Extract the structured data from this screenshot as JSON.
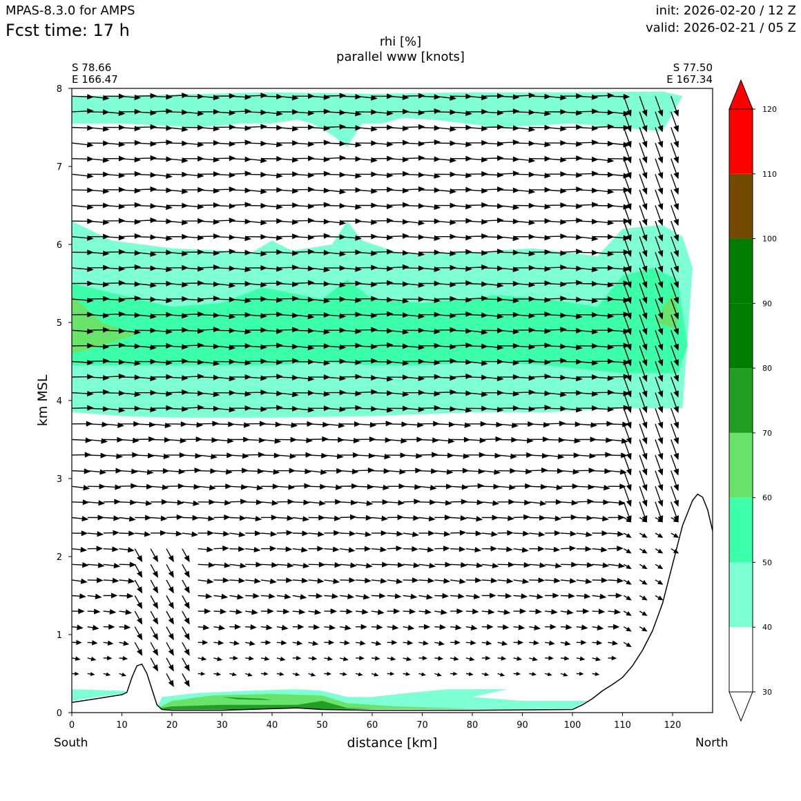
{
  "header": {
    "model": "MPAS-8.3.0 for AMPS",
    "fcst": "Fcst time:   17 h",
    "init": "init: 2026-02-20 / 12 Z",
    "valid": "valid: 2026-02-21 / 05 Z"
  },
  "chart_data": {
    "type": "heatmap",
    "title": "rhi [%]",
    "subtitle": "parallel www [knots]",
    "xlabel": "distance [km]",
    "ylabel": "km MSL",
    "xlim": [
      0,
      128
    ],
    "ylim": [
      0,
      8
    ],
    "xticks": [
      0,
      10,
      20,
      30,
      40,
      50,
      60,
      70,
      80,
      90,
      100,
      110,
      120
    ],
    "yticks": [
      0,
      1,
      2,
      3,
      4,
      5,
      6,
      7,
      8
    ],
    "start_point": {
      "lat": "S 78.66",
      "lon": "E 166.47"
    },
    "end_point": {
      "lat": "S 77.50",
      "lon": "E 167.34"
    },
    "direction_left": "South",
    "direction_right": "North",
    "colorbar": {
      "levels": [
        30,
        40,
        50,
        60,
        70,
        80,
        90,
        100,
        110,
        120
      ],
      "colors": [
        "#ffffff",
        "#7fffd4",
        "#3cffaa",
        "#6ae36a",
        "#229e22",
        "#007d00",
        "#007d00",
        "#744900",
        "#ff0000"
      ]
    },
    "terrain": [
      [
        0,
        0.13
      ],
      [
        5,
        0.18
      ],
      [
        10,
        0.23
      ],
      [
        11,
        0.26
      ],
      [
        12,
        0.45
      ],
      [
        13,
        0.6
      ],
      [
        14,
        0.62
      ],
      [
        15,
        0.5
      ],
      [
        16,
        0.3
      ],
      [
        17,
        0.1
      ],
      [
        18,
        0.04
      ],
      [
        20,
        0.03
      ],
      [
        30,
        0.03
      ],
      [
        45,
        0.06
      ],
      [
        50,
        0.04
      ],
      [
        60,
        0.03
      ],
      [
        80,
        0.03
      ],
      [
        100,
        0.04
      ],
      [
        102,
        0.1
      ],
      [
        104,
        0.18
      ],
      [
        106,
        0.28
      ],
      [
        108,
        0.36
      ],
      [
        110,
        0.45
      ],
      [
        112,
        0.6
      ],
      [
        114,
        0.8
      ],
      [
        116,
        1.05
      ],
      [
        118,
        1.4
      ],
      [
        120,
        1.9
      ],
      [
        122,
        2.4
      ],
      [
        124,
        2.72
      ],
      [
        125,
        2.8
      ],
      [
        126,
        2.76
      ],
      [
        127,
        2.6
      ],
      [
        128,
        2.33
      ]
    ],
    "rhi_regions": [
      {
        "level": "40-50",
        "color": "#7fffd4",
        "polygon": [
          [
            0,
            7.9
          ],
          [
            20,
            7.92
          ],
          [
            40,
            7.95
          ],
          [
            60,
            7.93
          ],
          [
            80,
            7.95
          ],
          [
            100,
            7.95
          ],
          [
            118,
            7.96
          ],
          [
            122,
            7.9
          ],
          [
            118,
            7.45
          ],
          [
            100,
            7.55
          ],
          [
            85,
            7.5
          ],
          [
            72,
            7.6
          ],
          [
            66,
            7.62
          ],
          [
            62,
            7.55
          ],
          [
            58,
            7.55
          ],
          [
            55,
            7.25
          ],
          [
            52,
            7.4
          ],
          [
            48,
            7.55
          ],
          [
            45,
            7.6
          ],
          [
            40,
            7.55
          ],
          [
            34,
            7.55
          ],
          [
            25,
            7.5
          ],
          [
            10,
            7.55
          ],
          [
            0,
            7.55
          ]
        ]
      },
      {
        "level": "40-50",
        "color": "#7fffd4",
        "polygon": [
          [
            0,
            6.3
          ],
          [
            8,
            6.05
          ],
          [
            20,
            5.95
          ],
          [
            30,
            5.92
          ],
          [
            36,
            5.9
          ],
          [
            40,
            6.05
          ],
          [
            44,
            5.92
          ],
          [
            52,
            6.0
          ],
          [
            55,
            6.3
          ],
          [
            58,
            6.05
          ],
          [
            66,
            5.88
          ],
          [
            80,
            5.9
          ],
          [
            92,
            5.95
          ],
          [
            105,
            5.85
          ],
          [
            110,
            6.2
          ],
          [
            118,
            6.25
          ],
          [
            122,
            6.1
          ],
          [
            124,
            5.7
          ],
          [
            122,
            3.9
          ],
          [
            110,
            3.9
          ],
          [
            95,
            3.85
          ],
          [
            80,
            3.85
          ],
          [
            60,
            3.8
          ],
          [
            40,
            3.78
          ],
          [
            20,
            3.78
          ],
          [
            10,
            3.8
          ],
          [
            0,
            3.85
          ]
        ]
      },
      {
        "level": "50-60",
        "color": "#3cffaa",
        "polygon": [
          [
            0,
            5.5
          ],
          [
            10,
            5.35
          ],
          [
            20,
            5.2
          ],
          [
            30,
            5.25
          ],
          [
            38,
            5.45
          ],
          [
            42,
            5.4
          ],
          [
            50,
            5.3
          ],
          [
            55,
            5.55
          ],
          [
            60,
            5.3
          ],
          [
            70,
            5.25
          ],
          [
            85,
            5.35
          ],
          [
            95,
            5.3
          ],
          [
            105,
            5.2
          ],
          [
            110,
            5.6
          ],
          [
            116,
            5.7
          ],
          [
            121,
            5.55
          ],
          [
            123,
            4.7
          ],
          [
            121,
            4.35
          ],
          [
            110,
            4.35
          ],
          [
            95,
            4.45
          ],
          [
            82,
            4.5
          ],
          [
            70,
            4.45
          ],
          [
            60,
            4.45
          ],
          [
            50,
            4.5
          ],
          [
            40,
            4.45
          ],
          [
            25,
            4.45
          ],
          [
            10,
            4.45
          ],
          [
            0,
            4.45
          ]
        ]
      },
      {
        "level": "60-70",
        "color": "#6ae36a",
        "polygon": [
          [
            0,
            5.35
          ],
          [
            6,
            5.0
          ],
          [
            13,
            4.85
          ],
          [
            6,
            4.7
          ],
          [
            0,
            4.6
          ]
        ]
      },
      {
        "level": "60-70",
        "color": "#6ae36a",
        "polygon": [
          [
            118,
            5.2
          ],
          [
            120,
            5.35
          ],
          [
            121,
            5.2
          ],
          [
            121,
            4.9
          ],
          [
            119,
            4.95
          ],
          [
            117,
            5.0
          ]
        ]
      },
      {
        "level": "40-50",
        "color": "#7fffd4",
        "polygon": [
          [
            0,
            0.3
          ],
          [
            10,
            0.28
          ],
          [
            11,
            0.27
          ],
          [
            10,
            0.24
          ],
          [
            5,
            0.2
          ],
          [
            0,
            0.15
          ]
        ]
      },
      {
        "level": "40-50",
        "color": "#7fffd4",
        "polygon": [
          [
            17,
            0.06
          ],
          [
            18,
            0.2
          ],
          [
            25,
            0.25
          ],
          [
            35,
            0.28
          ],
          [
            45,
            0.3
          ],
          [
            50,
            0.28
          ],
          [
            55,
            0.2
          ],
          [
            60,
            0.2
          ],
          [
            67,
            0.25
          ],
          [
            75,
            0.3
          ],
          [
            87,
            0.3
          ],
          [
            80,
            0.2
          ],
          [
            90,
            0.15
          ],
          [
            103,
            0.15
          ],
          [
            100,
            0.05
          ],
          [
            80,
            0.04
          ],
          [
            50,
            0.05
          ],
          [
            30,
            0.04
          ],
          [
            20,
            0.04
          ]
        ]
      },
      {
        "level": "60-70",
        "color": "#6ae36a",
        "polygon": [
          [
            17,
            0.05
          ],
          [
            20,
            0.15
          ],
          [
            28,
            0.22
          ],
          [
            40,
            0.24
          ],
          [
            50,
            0.22
          ],
          [
            55,
            0.12
          ],
          [
            65,
            0.08
          ],
          [
            80,
            0.05
          ],
          [
            50,
            0.04
          ],
          [
            30,
            0.04
          ],
          [
            20,
            0.04
          ]
        ]
      },
      {
        "level": "70-80",
        "color": "#229e22",
        "polygon": [
          [
            17,
            0.05
          ],
          [
            20,
            0.08
          ],
          [
            30,
            0.1
          ],
          [
            45,
            0.1
          ],
          [
            50,
            0.15
          ],
          [
            55,
            0.06
          ],
          [
            60,
            0.05
          ],
          [
            40,
            0.04
          ],
          [
            20,
            0.04
          ]
        ]
      },
      {
        "level": "70-80",
        "color": "#229e22",
        "polygon": [
          [
            30,
            0.2
          ],
          [
            38,
            0.18
          ],
          [
            40,
            0.16
          ],
          [
            33,
            0.17
          ]
        ]
      }
    ],
    "wind_vectors_note": "quiver of along-section wind: strong westerly-component arrows (~6-7 kt scale) aloft pointing right; steep downward arrows near x=120-128 km above 2 km; weak arrows below 1.5 km; descending arrows at x=13-23 km in lowest 2 km"
  }
}
